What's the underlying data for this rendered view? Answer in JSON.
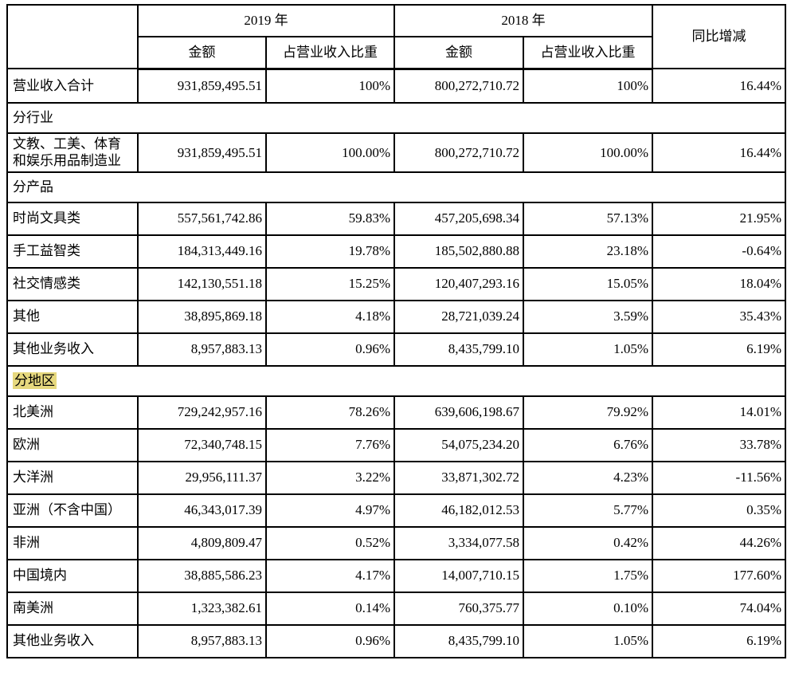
{
  "colors": {
    "cell_gray": "#d9d9d9",
    "highlight_yellow": "#e6d87e",
    "border_black": "#000000"
  },
  "table": {
    "header": {
      "year_2019": "2019 年",
      "year_2018": "2018 年",
      "col_amount": "金额",
      "col_ratio": "占营业收入比重",
      "col_yoy": "同比增减"
    },
    "rows": [
      {
        "type": "data",
        "shaded": true,
        "label": "营业收入合计",
        "cells": [
          "931,859,495.51",
          "100%",
          "800,272,710.72",
          "100%",
          "16.44%"
        ]
      },
      {
        "type": "section",
        "highlight": false,
        "label": "分行业"
      },
      {
        "type": "data",
        "shaded": false,
        "label": "文教、工美、体育和娱乐用品制造业",
        "cells": [
          "931,859,495.51",
          "100.00%",
          "800,272,710.72",
          "100.00%",
          "16.44%"
        ]
      },
      {
        "type": "section",
        "highlight": false,
        "label": "分产品"
      },
      {
        "type": "data",
        "shaded": false,
        "label": "时尚文具类",
        "cells": [
          "557,561,742.86",
          "59.83%",
          "457,205,698.34",
          "57.13%",
          "21.95%"
        ]
      },
      {
        "type": "data",
        "shaded": false,
        "label": "手工益智类",
        "cells": [
          "184,313,449.16",
          "19.78%",
          "185,502,880.88",
          "23.18%",
          "-0.64%"
        ]
      },
      {
        "type": "data",
        "shaded": false,
        "label": "社交情感类",
        "cells": [
          "142,130,551.18",
          "15.25%",
          "120,407,293.16",
          "15.05%",
          "18.04%"
        ]
      },
      {
        "type": "data",
        "shaded": false,
        "label": "其他",
        "cells": [
          "38,895,869.18",
          "4.18%",
          "28,721,039.24",
          "3.59%",
          "35.43%"
        ]
      },
      {
        "type": "data",
        "shaded": false,
        "label": "其他业务收入",
        "cells": [
          "8,957,883.13",
          "0.96%",
          "8,435,799.10",
          "1.05%",
          "6.19%"
        ]
      },
      {
        "type": "section",
        "highlight": true,
        "label": "分地区"
      },
      {
        "type": "data",
        "shaded": false,
        "label": "北美洲",
        "cells": [
          "729,242,957.16",
          "78.26%",
          "639,606,198.67",
          "79.92%",
          "14.01%"
        ]
      },
      {
        "type": "data",
        "shaded": false,
        "label": "欧洲",
        "cells": [
          "72,340,748.15",
          "7.76%",
          "54,075,234.20",
          "6.76%",
          "33.78%"
        ]
      },
      {
        "type": "data",
        "shaded": false,
        "label": "大洋洲",
        "cells": [
          "29,956,111.37",
          "3.22%",
          "33,871,302.72",
          "4.23%",
          "-11.56%"
        ]
      },
      {
        "type": "data",
        "shaded": false,
        "label": "亚洲（不含中国）",
        "cells": [
          "46,343,017.39",
          "4.97%",
          "46,182,012.53",
          "5.77%",
          "0.35%"
        ]
      },
      {
        "type": "data",
        "shaded": false,
        "label": "非洲",
        "cells": [
          "4,809,809.47",
          "0.52%",
          "3,334,077.58",
          "0.42%",
          "44.26%"
        ]
      },
      {
        "type": "data",
        "shaded": false,
        "label": "中国境内",
        "cells": [
          "38,885,586.23",
          "4.17%",
          "14,007,710.15",
          "1.75%",
          "177.60%"
        ]
      },
      {
        "type": "data",
        "shaded": false,
        "label": "南美洲",
        "cells": [
          "1,323,382.61",
          "0.14%",
          "760,375.77",
          "0.10%",
          "74.04%"
        ]
      },
      {
        "type": "data",
        "shaded": false,
        "label": "其他业务收入",
        "cells": [
          "8,957,883.13",
          "0.96%",
          "8,435,799.10",
          "1.05%",
          "6.19%"
        ]
      }
    ]
  }
}
